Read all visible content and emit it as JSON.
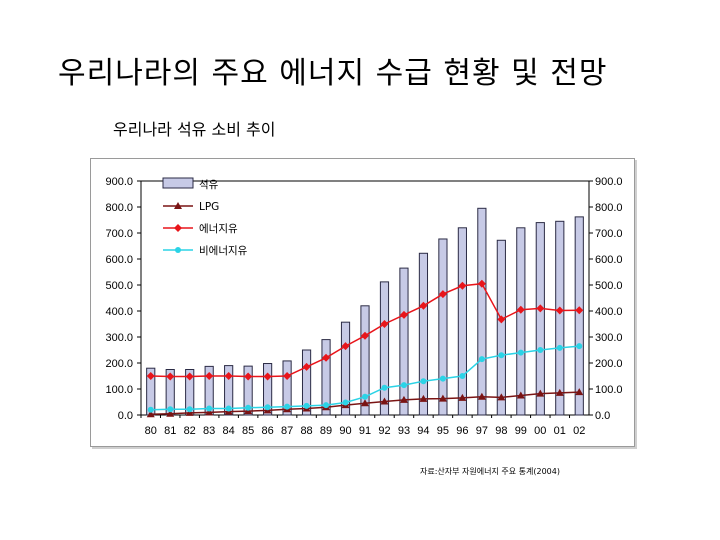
{
  "slide": {
    "title": "우리나라의 주요 에너지 수급 현황 및 전망",
    "subtitle": "우리나라 석유 소비 추이",
    "source": "자료:산자부 자원에너지 주요 통계(2004)"
  },
  "colors": {
    "bar_fill": "#c7cae6",
    "bar_stroke": "#2b2b45",
    "lpg": "#7a1414",
    "energy_oil": "#e8151b",
    "nonenergy_oil": "#2bd3e6",
    "axis": "#000000"
  },
  "chart_data": {
    "type": "bar",
    "title": "우리나라 석유 소비 추이",
    "xlabel": "",
    "ylabel": "",
    "ylim": [
      0,
      900
    ],
    "yticks": [
      "0.0",
      "100.0",
      "200.0",
      "300.0",
      "400.0",
      "500.0",
      "600.0",
      "700.0",
      "800.0",
      "900.0"
    ],
    "categories": [
      "80",
      "81",
      "82",
      "83",
      "84",
      "85",
      "86",
      "87",
      "88",
      "89",
      "90",
      "91",
      "92",
      "93",
      "94",
      "95",
      "96",
      "97",
      "98",
      "99",
      "00",
      "01",
      "02"
    ],
    "legend_position": "top-left",
    "series": [
      {
        "name": "석유",
        "type": "bar",
        "values": [
          180,
          175,
          175,
          187,
          190,
          188,
          198,
          208,
          250,
          290,
          357,
          420,
          512,
          565,
          622,
          677,
          720,
          795,
          672,
          720,
          740,
          745,
          762
        ]
      },
      {
        "name": "LPG",
        "type": "line",
        "marker": "triangle",
        "values": [
          3,
          5,
          8,
          10,
          13,
          15,
          18,
          22,
          25,
          30,
          38,
          45,
          52,
          58,
          62,
          63,
          66,
          70,
          68,
          75,
          82,
          85,
          88
        ]
      },
      {
        "name": "에너지유",
        "type": "line",
        "marker": "diamond",
        "values": [
          150,
          148,
          148,
          150,
          150,
          148,
          148,
          150,
          185,
          220,
          265,
          305,
          350,
          385,
          420,
          465,
          497,
          505,
          368,
          405,
          410,
          402,
          403
        ]
      },
      {
        "name": "비에너지유",
        "type": "line",
        "marker": "circle",
        "values": [
          20,
          22,
          22,
          25,
          25,
          28,
          30,
          32,
          35,
          38,
          48,
          70,
          105,
          115,
          130,
          140,
          150,
          215,
          230,
          240,
          250,
          258,
          265
        ]
      }
    ]
  }
}
